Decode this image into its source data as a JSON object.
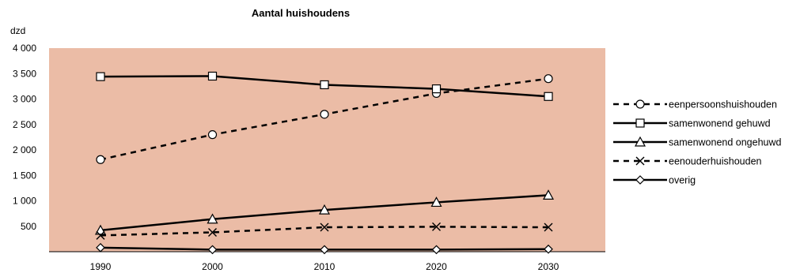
{
  "chart_data": {
    "type": "line",
    "title": "Aantal huishoudens",
    "ylabel": "dzd",
    "xlabel": "",
    "x": [
      1990,
      2000,
      2010,
      2020,
      2030
    ],
    "xticks": [
      "1990",
      "2000",
      "2010",
      "2020",
      "2030"
    ],
    "ylim": [
      0,
      4000
    ],
    "yticks": [
      500,
      1000,
      1500,
      2000,
      2500,
      3000,
      3500,
      4000
    ],
    "ytick_labels": [
      "500",
      "1 000",
      "1 500",
      "2 000",
      "2 500",
      "3 000",
      "3 500",
      "4 000"
    ],
    "grid": false,
    "legend_position": "right",
    "plot_background": "#ebbca6",
    "series": [
      {
        "name": "eenpersoonshuishouden",
        "values": [
          1810,
          2300,
          2700,
          3110,
          3400
        ],
        "line_style": "dashed",
        "marker": "circle"
      },
      {
        "name": "samenwonend gehuwd",
        "values": [
          3440,
          3450,
          3280,
          3200,
          3050
        ],
        "line_style": "solid",
        "marker": "square"
      },
      {
        "name": "samenwonend ongehuwd",
        "values": [
          420,
          640,
          820,
          970,
          1110
        ],
        "line_style": "solid",
        "marker": "triangle"
      },
      {
        "name": "eenouderhuishouden",
        "values": [
          320,
          380,
          480,
          490,
          480
        ],
        "line_style": "dashed",
        "marker": "x"
      },
      {
        "name": "overig",
        "values": [
          80,
          40,
          40,
          40,
          50
        ],
        "line_style": "solid",
        "marker": "diamond"
      }
    ]
  }
}
